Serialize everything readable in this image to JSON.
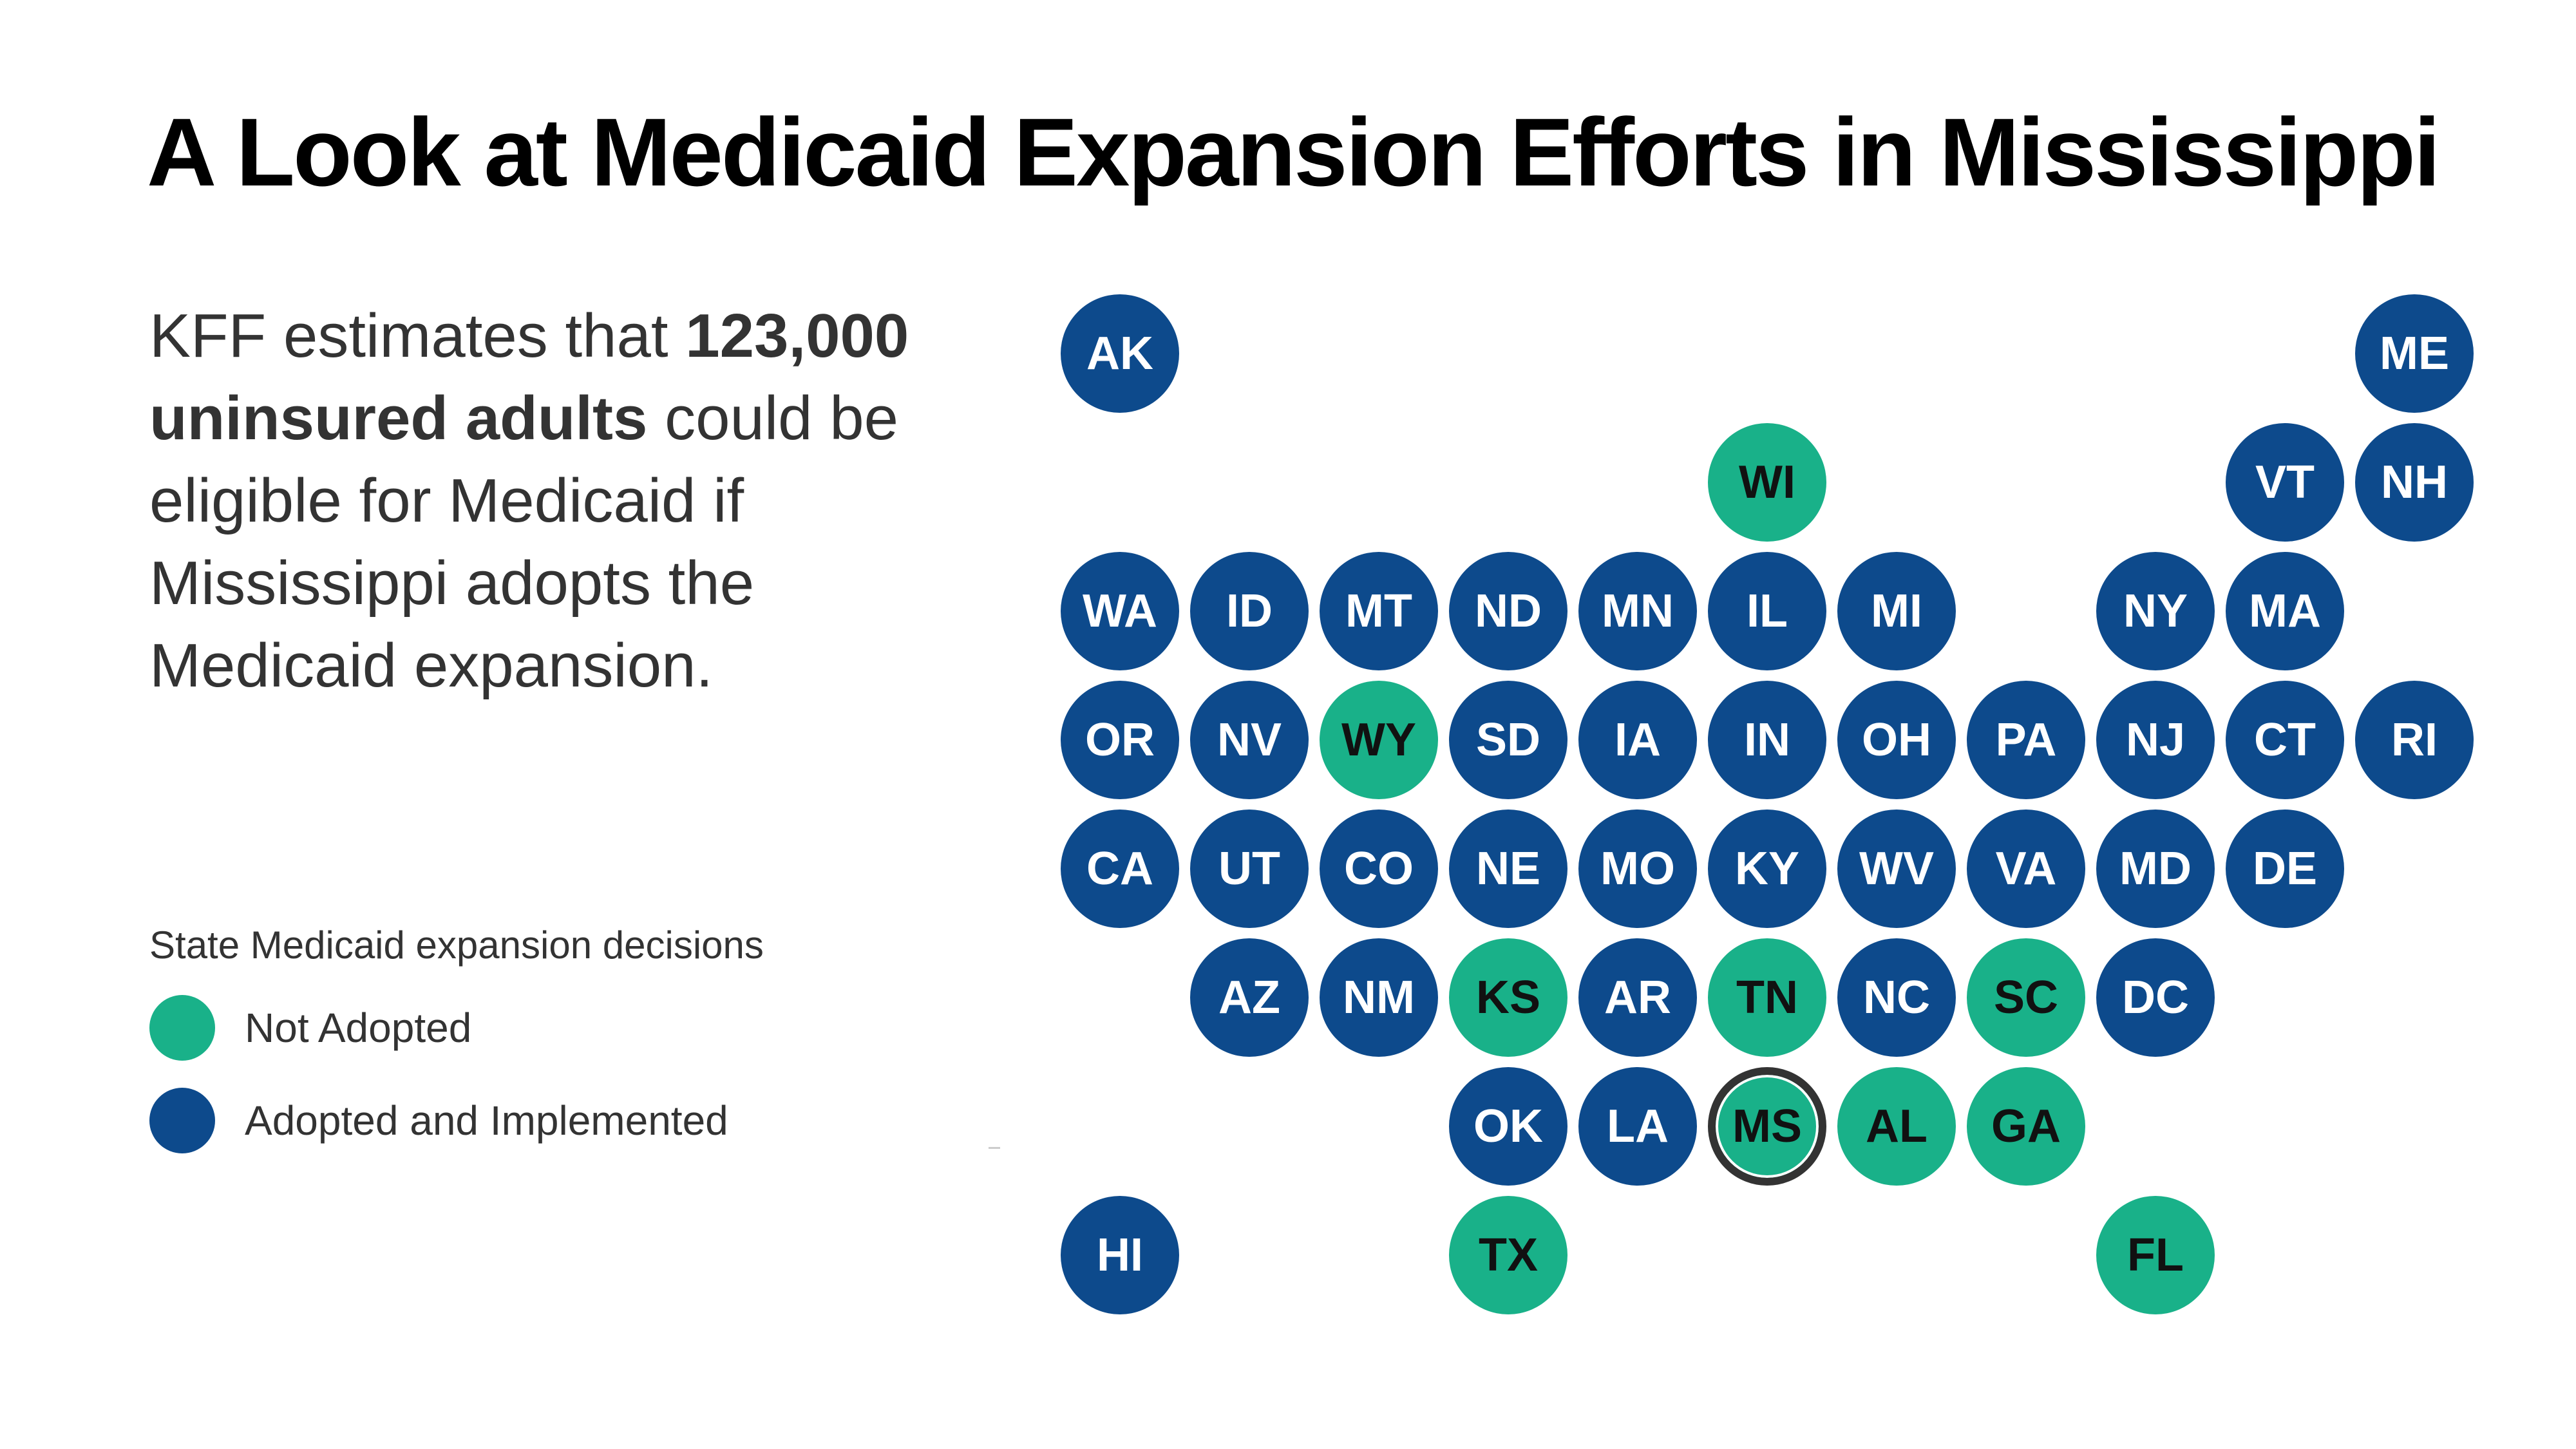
{
  "title": "A Look at Medicaid Expansion Efforts in Mississippi",
  "blurb": {
    "lead": "KFF estimates that ",
    "bold": "123,000 uninsured adults",
    "tail": " could be eligible for Medicaid if Mississippi adopts the Medicaid expansion."
  },
  "legend": {
    "title": "State Medicaid expansion decisions",
    "items": [
      {
        "key": "not_adopted",
        "label": "Not Adopted",
        "color": "#19b189"
      },
      {
        "key": "adopted",
        "label": "Adopted and Implemented",
        "color": "#0d4a8c"
      }
    ]
  },
  "colors": {
    "not_adopted": "#19b189",
    "adopted": "#0d4a8c",
    "not_adopted_text": "#111111",
    "adopted_text": "#ffffff",
    "highlight_ring": "#333333"
  },
  "highlight_state": "MS",
  "states": [
    {
      "abbr": "AK",
      "row": 0,
      "col": 0,
      "status": "adopted"
    },
    {
      "abbr": "ME",
      "row": 0,
      "col": 10,
      "status": "adopted"
    },
    {
      "abbr": "WI",
      "row": 1,
      "col": 5,
      "status": "not_adopted"
    },
    {
      "abbr": "VT",
      "row": 1,
      "col": 9,
      "status": "adopted"
    },
    {
      "abbr": "NH",
      "row": 1,
      "col": 10,
      "status": "adopted"
    },
    {
      "abbr": "WA",
      "row": 2,
      "col": 0,
      "status": "adopted"
    },
    {
      "abbr": "ID",
      "row": 2,
      "col": 1,
      "status": "adopted"
    },
    {
      "abbr": "MT",
      "row": 2,
      "col": 2,
      "status": "adopted"
    },
    {
      "abbr": "ND",
      "row": 2,
      "col": 3,
      "status": "adopted"
    },
    {
      "abbr": "MN",
      "row": 2,
      "col": 4,
      "status": "adopted"
    },
    {
      "abbr": "IL",
      "row": 2,
      "col": 5,
      "status": "adopted"
    },
    {
      "abbr": "MI",
      "row": 2,
      "col": 6,
      "status": "adopted"
    },
    {
      "abbr": "NY",
      "row": 2,
      "col": 8,
      "status": "adopted"
    },
    {
      "abbr": "MA",
      "row": 2,
      "col": 9,
      "status": "adopted"
    },
    {
      "abbr": "OR",
      "row": 3,
      "col": 0,
      "status": "adopted"
    },
    {
      "abbr": "NV",
      "row": 3,
      "col": 1,
      "status": "adopted"
    },
    {
      "abbr": "WY",
      "row": 3,
      "col": 2,
      "status": "not_adopted"
    },
    {
      "abbr": "SD",
      "row": 3,
      "col": 3,
      "status": "adopted"
    },
    {
      "abbr": "IA",
      "row": 3,
      "col": 4,
      "status": "adopted"
    },
    {
      "abbr": "IN",
      "row": 3,
      "col": 5,
      "status": "adopted"
    },
    {
      "abbr": "OH",
      "row": 3,
      "col": 6,
      "status": "adopted"
    },
    {
      "abbr": "PA",
      "row": 3,
      "col": 7,
      "status": "adopted"
    },
    {
      "abbr": "NJ",
      "row": 3,
      "col": 8,
      "status": "adopted"
    },
    {
      "abbr": "CT",
      "row": 3,
      "col": 9,
      "status": "adopted"
    },
    {
      "abbr": "RI",
      "row": 3,
      "col": 10,
      "status": "adopted"
    },
    {
      "abbr": "CA",
      "row": 4,
      "col": 0,
      "status": "adopted"
    },
    {
      "abbr": "UT",
      "row": 4,
      "col": 1,
      "status": "adopted"
    },
    {
      "abbr": "CO",
      "row": 4,
      "col": 2,
      "status": "adopted"
    },
    {
      "abbr": "NE",
      "row": 4,
      "col": 3,
      "status": "adopted"
    },
    {
      "abbr": "MO",
      "row": 4,
      "col": 4,
      "status": "adopted"
    },
    {
      "abbr": "KY",
      "row": 4,
      "col": 5,
      "status": "adopted"
    },
    {
      "abbr": "WV",
      "row": 4,
      "col": 6,
      "status": "adopted"
    },
    {
      "abbr": "VA",
      "row": 4,
      "col": 7,
      "status": "adopted"
    },
    {
      "abbr": "MD",
      "row": 4,
      "col": 8,
      "status": "adopted"
    },
    {
      "abbr": "DE",
      "row": 4,
      "col": 9,
      "status": "adopted"
    },
    {
      "abbr": "AZ",
      "row": 5,
      "col": 1,
      "status": "adopted"
    },
    {
      "abbr": "NM",
      "row": 5,
      "col": 2,
      "status": "adopted"
    },
    {
      "abbr": "KS",
      "row": 5,
      "col": 3,
      "status": "not_adopted"
    },
    {
      "abbr": "AR",
      "row": 5,
      "col": 4,
      "status": "adopted"
    },
    {
      "abbr": "TN",
      "row": 5,
      "col": 5,
      "status": "not_adopted"
    },
    {
      "abbr": "NC",
      "row": 5,
      "col": 6,
      "status": "adopted"
    },
    {
      "abbr": "SC",
      "row": 5,
      "col": 7,
      "status": "not_adopted"
    },
    {
      "abbr": "DC",
      "row": 5,
      "col": 8,
      "status": "adopted"
    },
    {
      "abbr": "OK",
      "row": 6,
      "col": 3,
      "status": "adopted"
    },
    {
      "abbr": "LA",
      "row": 6,
      "col": 4,
      "status": "adopted"
    },
    {
      "abbr": "MS",
      "row": 6,
      "col": 5,
      "status": "not_adopted"
    },
    {
      "abbr": "AL",
      "row": 6,
      "col": 6,
      "status": "not_adopted"
    },
    {
      "abbr": "GA",
      "row": 6,
      "col": 7,
      "status": "not_adopted"
    },
    {
      "abbr": "HI",
      "row": 7,
      "col": 0,
      "status": "adopted"
    },
    {
      "abbr": "TX",
      "row": 7,
      "col": 3,
      "status": "not_adopted"
    },
    {
      "abbr": "FL",
      "row": 7,
      "col": 8,
      "status": "not_adopted"
    }
  ]
}
